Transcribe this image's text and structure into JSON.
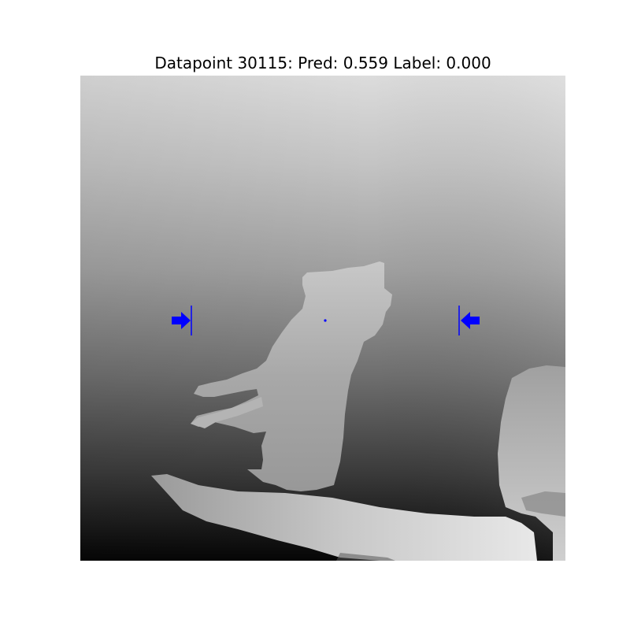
{
  "title": "Datapoint 30115: Pred: 0.559 Label: 0.000",
  "image": {
    "kind": "grayscale depth image",
    "subject": "cat standing on hind legs on a ledge",
    "marker_color": "#0000ff"
  }
}
